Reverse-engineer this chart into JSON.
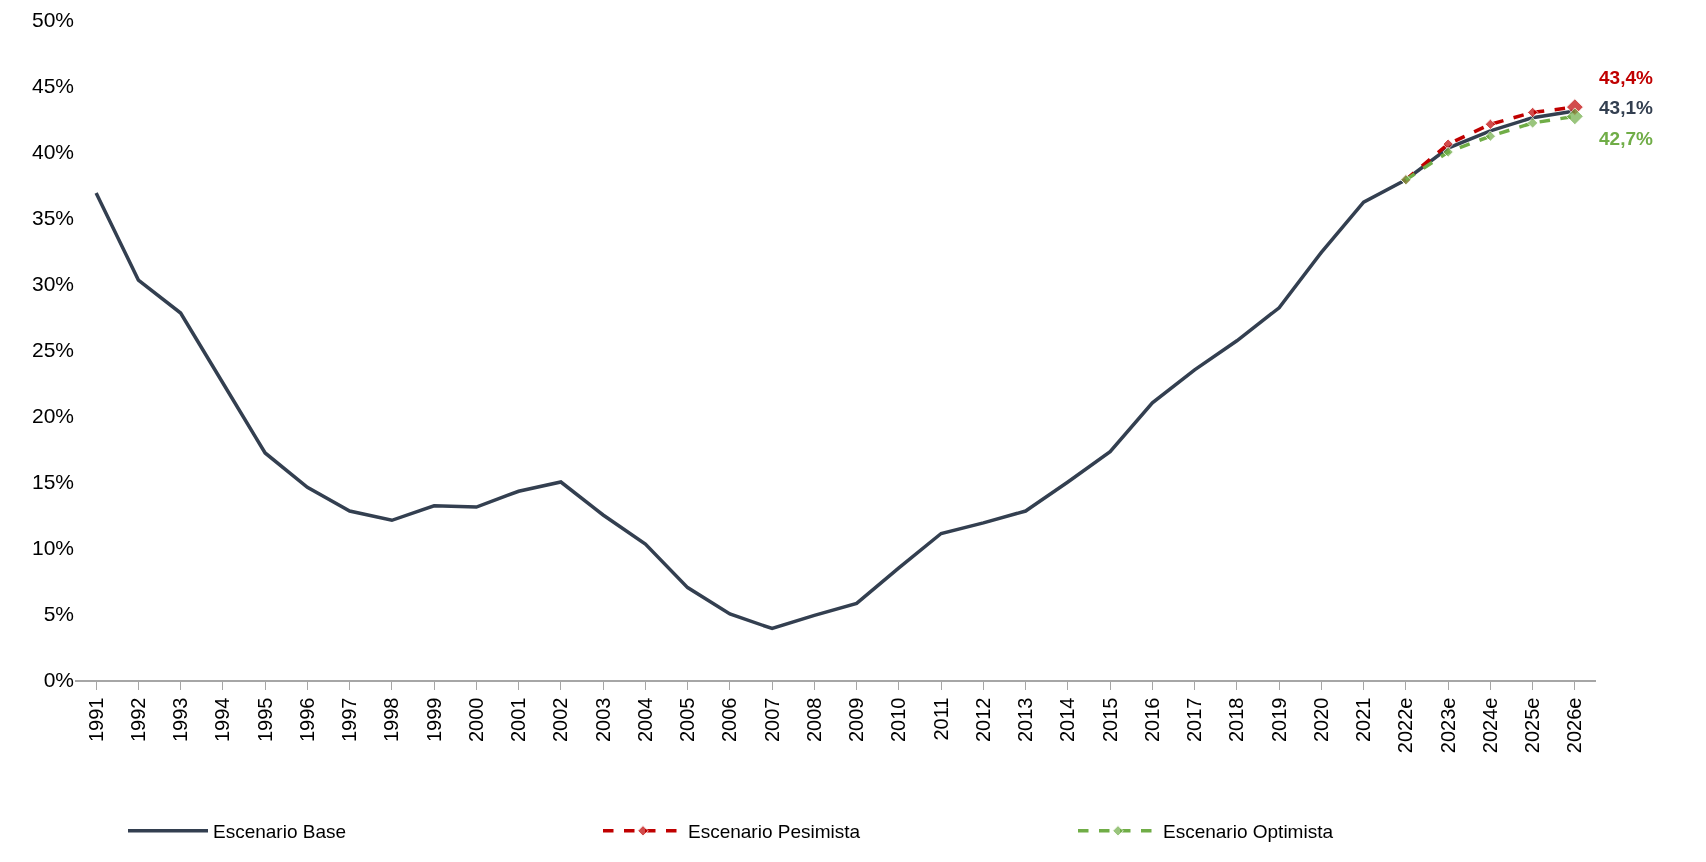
{
  "chart_data": {
    "type": "line",
    "categories": [
      "1991",
      "1992",
      "1993",
      "1994",
      "1995",
      "1996",
      "1997",
      "1998",
      "1999",
      "2000",
      "2001",
      "2002",
      "2003",
      "2004",
      "2005",
      "2006",
      "2007",
      "2008",
      "2009",
      "2010",
      "2011",
      "2012",
      "2013",
      "2014",
      "2015",
      "2016",
      "2017",
      "2018",
      "2019",
      "2020",
      "2021",
      "2022e",
      "2023e",
      "2024e",
      "2025e",
      "2026e"
    ],
    "series": [
      {
        "name": "Escenario Base",
        "color": "#333f50",
        "line_style": "solid",
        "values": [
          36.9,
          30.3,
          27.8,
          22.5,
          17.2,
          14.6,
          12.8,
          12.1,
          13.2,
          13.1,
          14.3,
          15.0,
          12.5,
          10.3,
          7.0,
          5.0,
          3.9,
          4.9,
          5.8,
          8.5,
          11.1,
          11.9,
          12.8,
          15.0,
          17.3,
          21.0,
          23.5,
          25.7,
          28.2,
          32.4,
          36.2,
          37.9,
          40.3,
          41.6,
          42.6,
          43.1
        ],
        "value_labels": [
          null,
          null,
          null,
          null,
          null,
          null,
          null,
          null,
          null,
          null,
          null,
          null,
          null,
          null,
          null,
          null,
          null,
          null,
          null,
          null,
          null,
          null,
          null,
          null,
          null,
          null,
          null,
          null,
          null,
          null,
          null,
          null,
          null,
          null,
          null,
          "43,1%"
        ]
      },
      {
        "name": "Escenario Pesimista",
        "color": "#c00000",
        "line_style": "dashed",
        "marker": "diamond",
        "values": [
          null,
          null,
          null,
          null,
          null,
          null,
          null,
          null,
          null,
          null,
          null,
          null,
          null,
          null,
          null,
          null,
          null,
          null,
          null,
          null,
          null,
          null,
          null,
          null,
          null,
          null,
          null,
          null,
          null,
          null,
          null,
          37.9,
          40.6,
          42.1,
          43.0,
          43.4
        ],
        "value_labels": [
          null,
          null,
          null,
          null,
          null,
          null,
          null,
          null,
          null,
          null,
          null,
          null,
          null,
          null,
          null,
          null,
          null,
          null,
          null,
          null,
          null,
          null,
          null,
          null,
          null,
          null,
          null,
          null,
          null,
          null,
          null,
          null,
          null,
          null,
          null,
          "43,4%"
        ]
      },
      {
        "name": "Escenario Optimista",
        "color": "#70ad47",
        "line_style": "dashed",
        "marker": "diamond",
        "values": [
          null,
          null,
          null,
          null,
          null,
          null,
          null,
          null,
          null,
          null,
          null,
          null,
          null,
          null,
          null,
          null,
          null,
          null,
          null,
          null,
          null,
          null,
          null,
          null,
          null,
          null,
          null,
          null,
          null,
          null,
          null,
          37.9,
          40.0,
          41.2,
          42.2,
          42.7
        ],
        "value_labels": [
          null,
          null,
          null,
          null,
          null,
          null,
          null,
          null,
          null,
          null,
          null,
          null,
          null,
          null,
          null,
          null,
          null,
          null,
          null,
          null,
          null,
          null,
          null,
          null,
          null,
          null,
          null,
          null,
          null,
          null,
          null,
          null,
          null,
          null,
          null,
          "42,7%"
        ]
      }
    ],
    "ylim": [
      0,
      50
    ],
    "yticks": [
      {
        "value": 0,
        "label": "0%"
      },
      {
        "value": 5,
        "label": "5%"
      },
      {
        "value": 10,
        "label": "10%"
      },
      {
        "value": 15,
        "label": "15%"
      },
      {
        "value": 20,
        "label": "20%"
      },
      {
        "value": 25,
        "label": "25%"
      },
      {
        "value": 30,
        "label": "30%"
      },
      {
        "value": 35,
        "label": "35%"
      },
      {
        "value": 40,
        "label": "40%"
      },
      {
        "value": 45,
        "label": "45%"
      },
      {
        "value": 50,
        "label": "50%"
      }
    ],
    "grid": false,
    "legend": "bottom"
  }
}
